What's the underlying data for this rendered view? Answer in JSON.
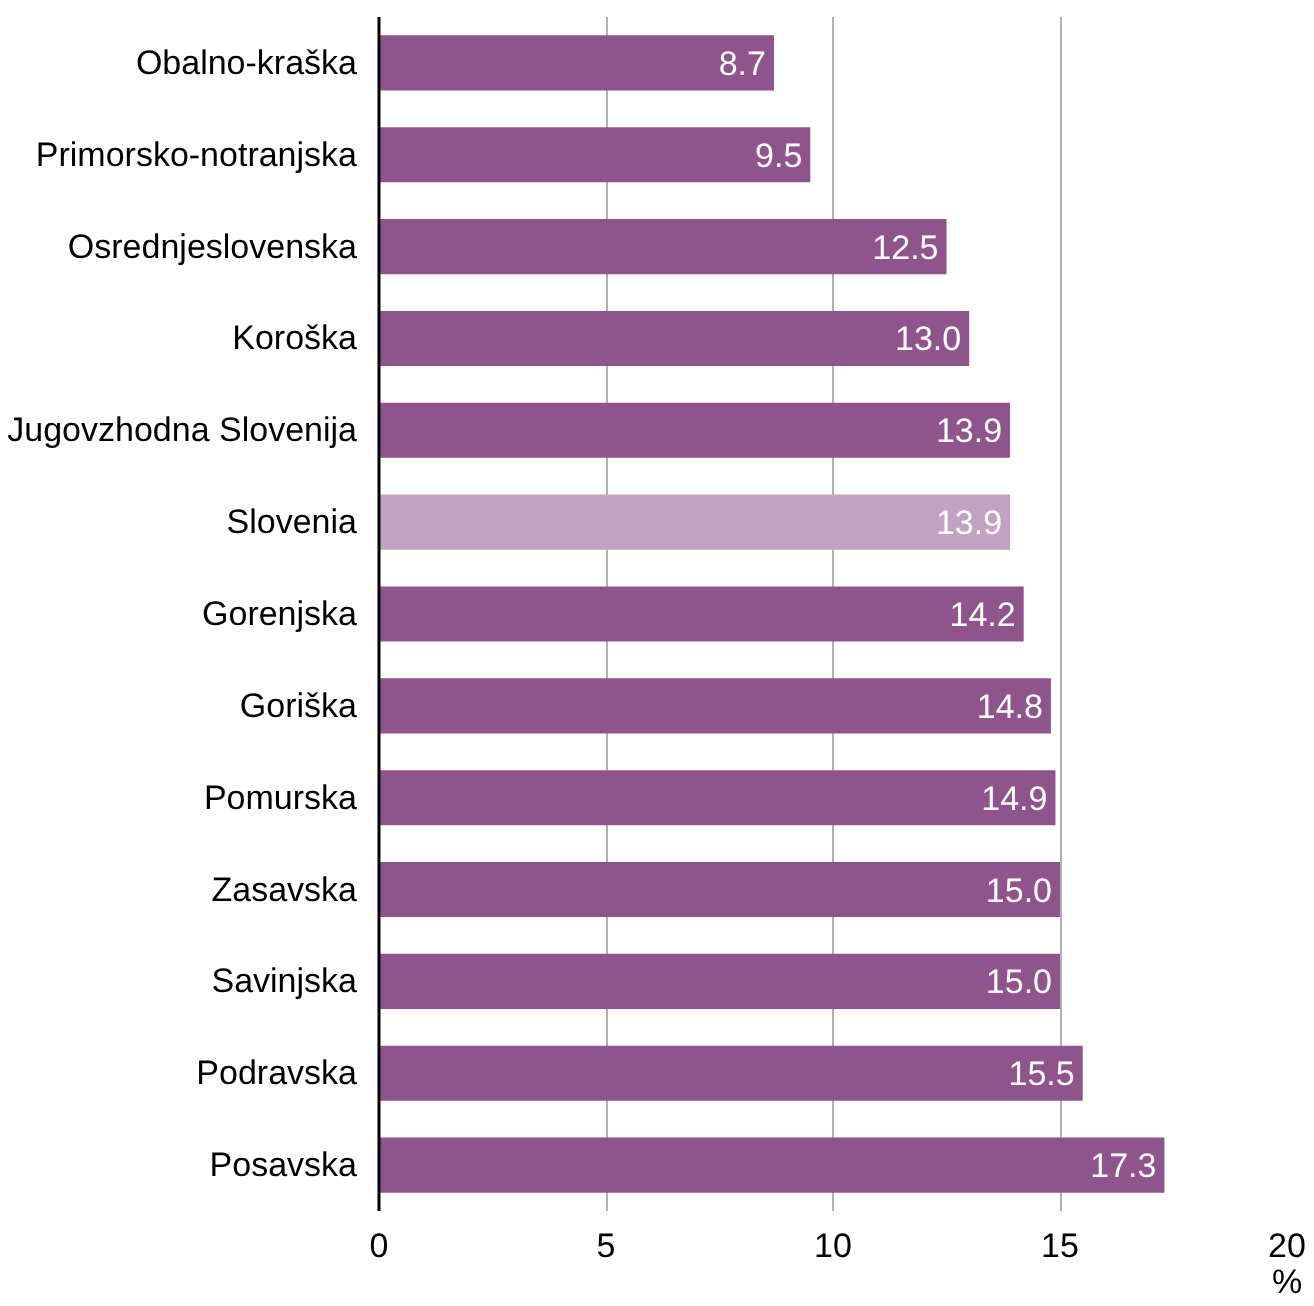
{
  "chart_data": {
    "type": "bar",
    "orientation": "horizontal",
    "xlabel": "%",
    "categories": [
      "Obalno-kraška",
      "Primorsko-notranjska",
      "Osrednjeslovenska",
      "Koroška",
      "Jugovzhodna Slovenija",
      "Slovenia",
      "Gorenjska",
      "Goriška",
      "Pomurska",
      "Zasavska",
      "Savinjska",
      "Podravska",
      "Posavska"
    ],
    "values": [
      8.7,
      9.5,
      12.5,
      13.0,
      13.9,
      13.9,
      14.2,
      14.8,
      14.9,
      15.0,
      15.0,
      15.5,
      17.3
    ],
    "colors": [
      "#8f548b",
      "#8f548b",
      "#8f548b",
      "#8f548b",
      "#8f548b",
      "#c2a1c2",
      "#8f548b",
      "#8f548b",
      "#8f548b",
      "#8f548b",
      "#8f548b",
      "#8f548b",
      "#8f548b"
    ],
    "value_labels": [
      "8.7",
      "9.5",
      "12.5",
      "13.0",
      "13.9",
      "13.9",
      "14.2",
      "14.8",
      "14.9",
      "15.0",
      "15.0",
      "15.5",
      "17.3"
    ],
    "xlim": [
      0,
      20
    ],
    "xticks": [
      0,
      5,
      10,
      15,
      20
    ],
    "grid": "x"
  }
}
